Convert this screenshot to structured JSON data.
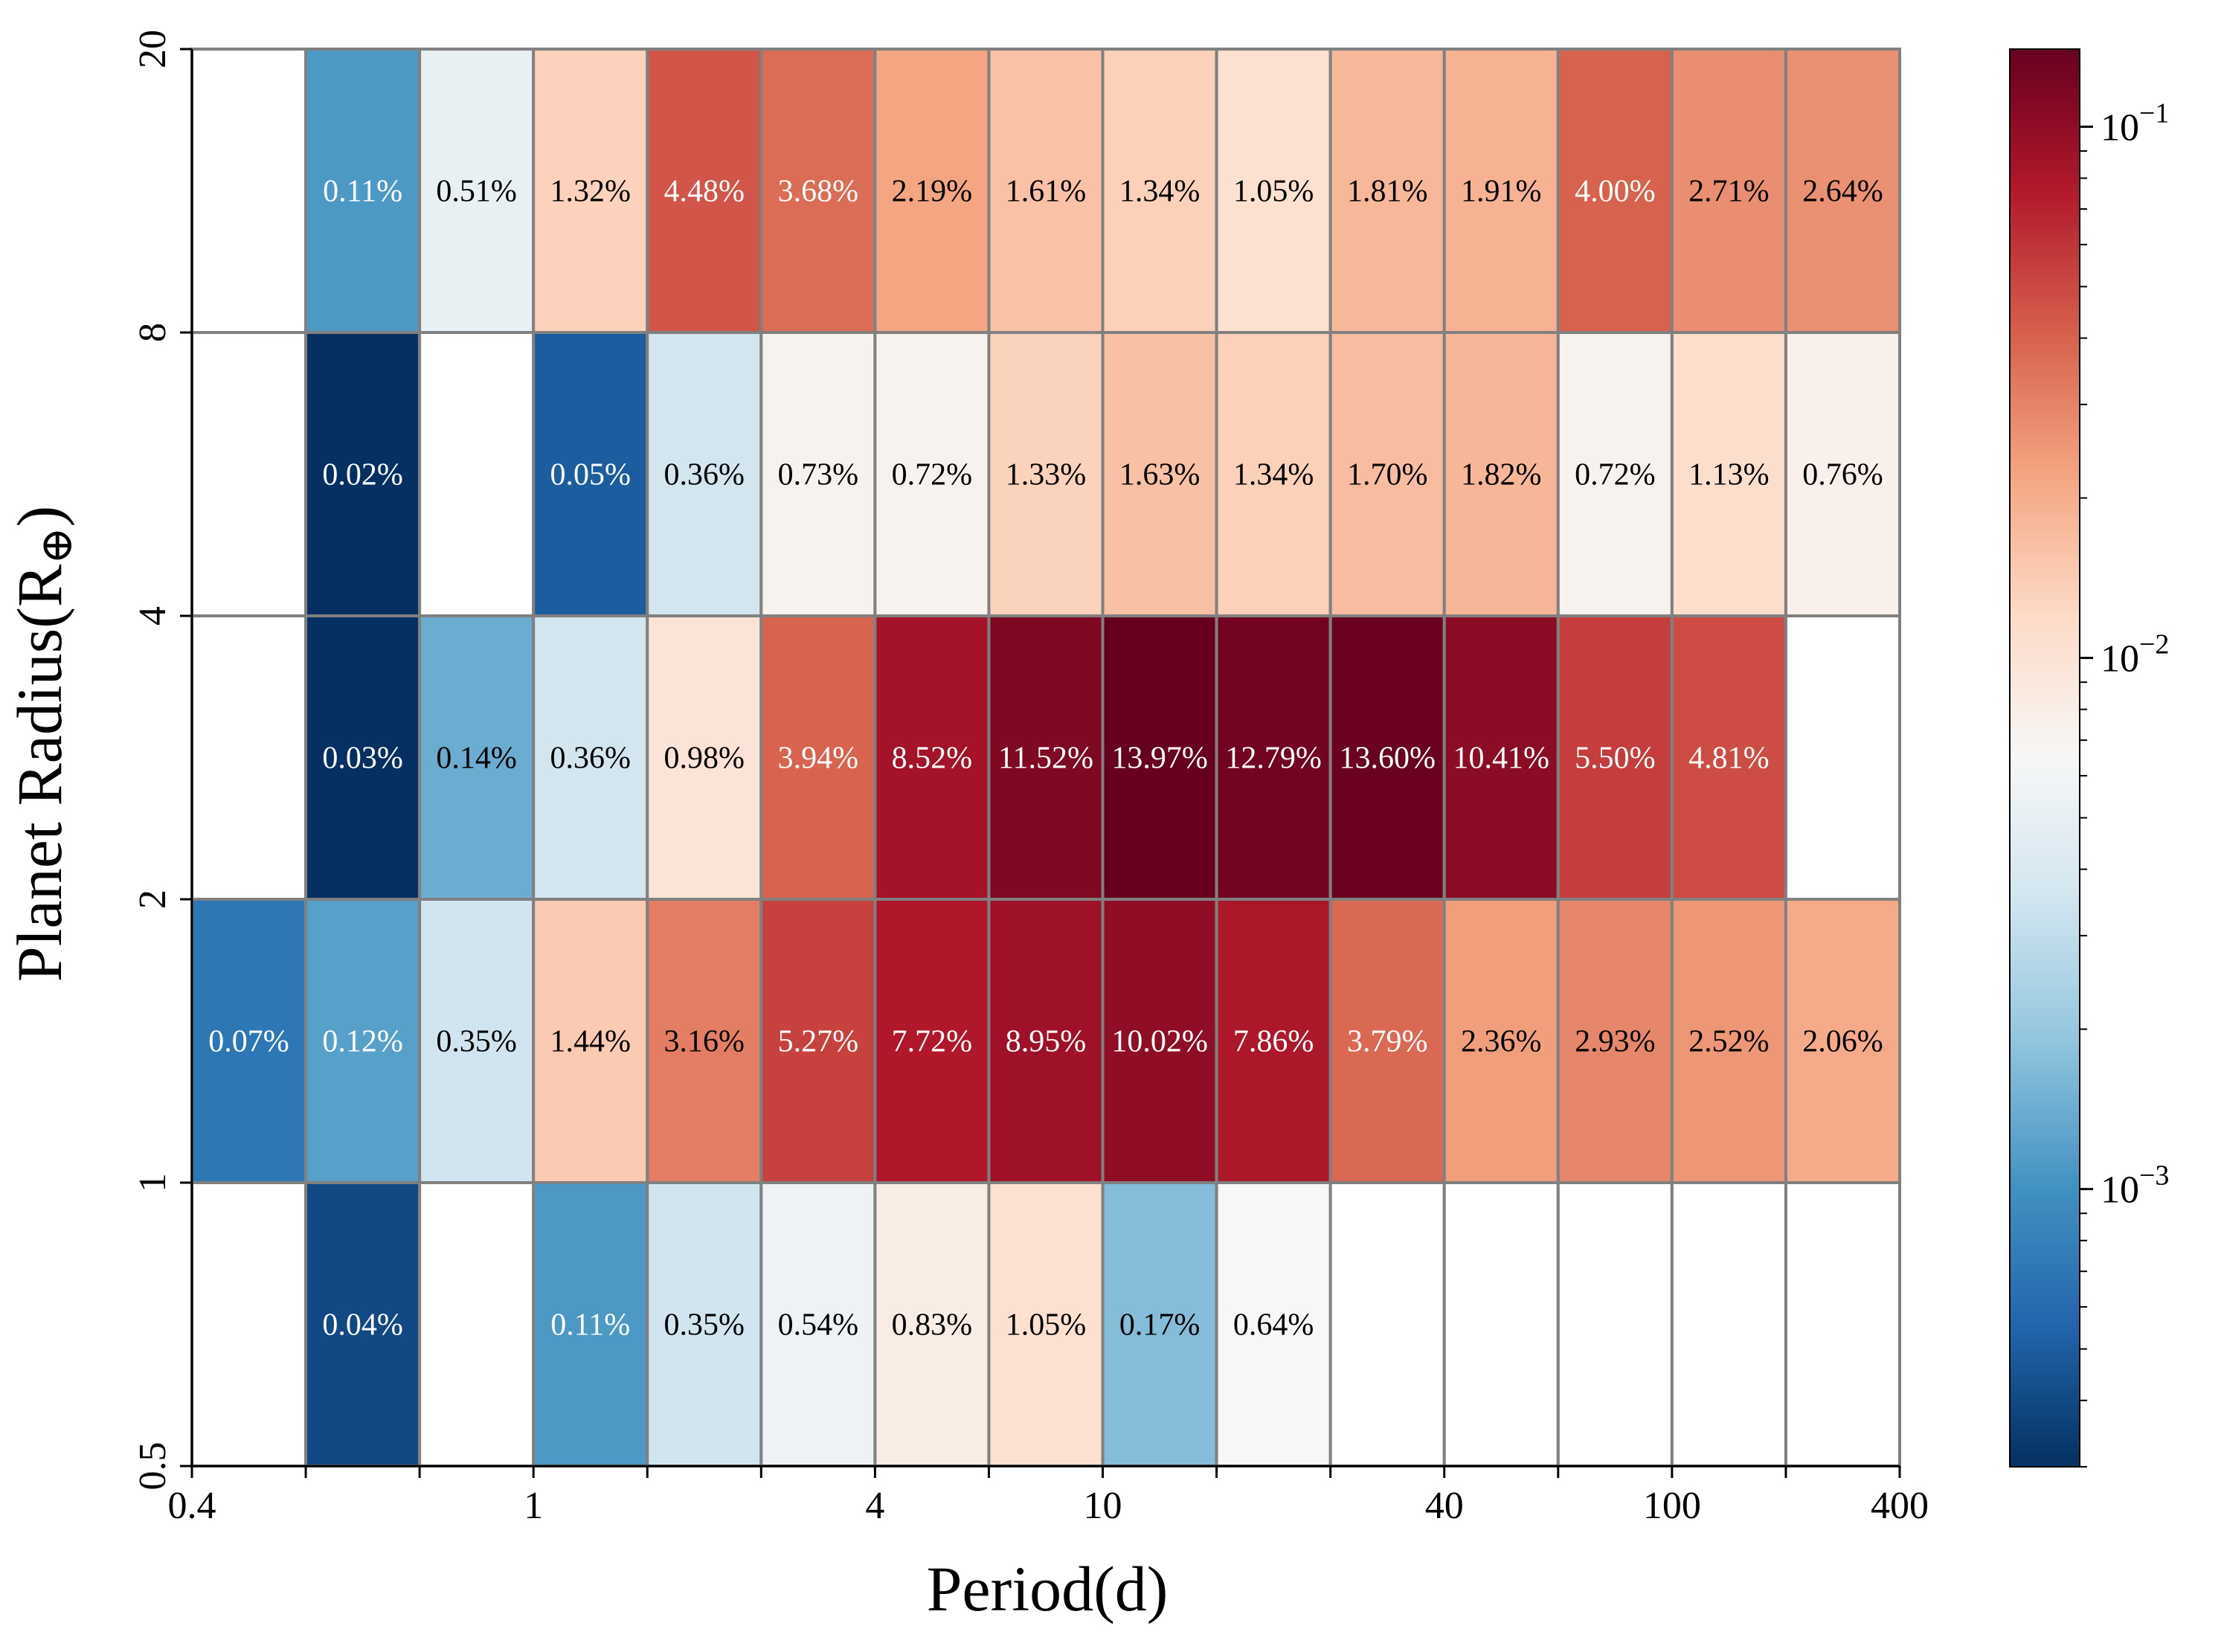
{
  "chart_data": {
    "type": "heatmap",
    "title": "",
    "xlabel": "Period(d)",
    "ylabel_main": "Planet Radius(R",
    "ylabel_sub": "⊕",
    "ylabel_close": ")",
    "x_bin_edges": [
      0.4,
      0.6,
      0.8,
      1,
      1.4,
      2,
      4,
      6,
      10,
      15,
      25,
      40,
      60,
      100,
      160,
      400
    ],
    "x_tick_labels": [
      "0.4",
      "1",
      "4",
      "10",
      "40",
      "100",
      "400"
    ],
    "x_tick_label_edge_index": [
      0,
      3,
      6,
      8,
      11,
      13,
      15
    ],
    "y_bin_edges": [
      0.5,
      1,
      2,
      4,
      8,
      20
    ],
    "y_tick_labels": [
      "0.5",
      "1",
      "2",
      "4",
      "8",
      "20"
    ],
    "rows_top_to_bottom": [
      [
        null,
        0.11,
        0.51,
        1.32,
        4.48,
        3.68,
        2.19,
        1.61,
        1.34,
        1.05,
        1.81,
        1.91,
        4.0,
        2.71,
        2.64
      ],
      [
        null,
        0.02,
        null,
        0.05,
        0.36,
        0.73,
        0.72,
        1.33,
        1.63,
        1.34,
        1.7,
        1.82,
        0.72,
        1.13,
        0.76
      ],
      [
        null,
        0.03,
        0.14,
        0.36,
        0.98,
        3.94,
        8.52,
        11.52,
        13.97,
        12.79,
        13.6,
        10.41,
        5.5,
        4.81,
        null
      ],
      [
        0.07,
        0.12,
        0.35,
        1.44,
        3.16,
        5.27,
        7.72,
        8.95,
        10.02,
        7.86,
        3.79,
        2.36,
        2.93,
        2.52,
        2.06
      ],
      [
        null,
        0.04,
        null,
        0.11,
        0.35,
        0.54,
        0.83,
        1.05,
        0.17,
        0.64,
        null,
        null,
        null,
        null,
        null
      ]
    ],
    "value_unit": "%",
    "colorbar": {
      "scale": "log",
      "range": [
        0.0003,
        0.14
      ],
      "colormap": "RdBu_r",
      "tick_base": "10",
      "tick_exponents": [
        "−3",
        "−2",
        "−1"
      ]
    },
    "colors": {
      "grid": "#808080",
      "text_dark": "#000000",
      "text_light": "#ffffff"
    }
  }
}
